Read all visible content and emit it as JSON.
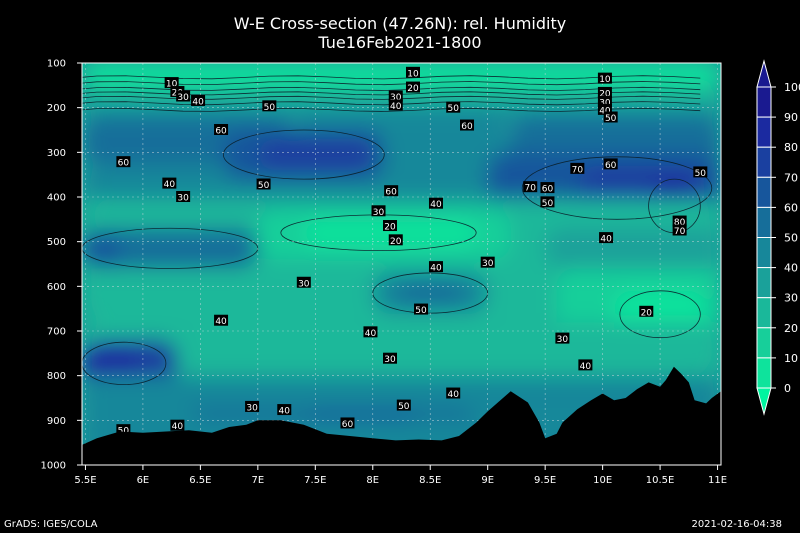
{
  "chart_data": {
    "type": "heatmap",
    "title": "W-E Cross-section (47.26N): rel. Humidity",
    "subtitle": "Tue16Feb2021-1800",
    "x_ticks": [
      "5.5E",
      "6E",
      "6.5E",
      "7E",
      "7.5E",
      "8E",
      "8.5E",
      "9E",
      "9.5E",
      "10E",
      "10.5E",
      "11E"
    ],
    "x_values": [
      5.5,
      6,
      6.5,
      7,
      7.5,
      8,
      8.5,
      9,
      9.5,
      10,
      10.5,
      11
    ],
    "xlim": [
      5.47,
      11.03
    ],
    "y_ticks": [
      "100",
      "200",
      "300",
      "400",
      "500",
      "600",
      "700",
      "800",
      "900",
      "1000"
    ],
    "y_values": [
      100,
      200,
      300,
      400,
      500,
      600,
      700,
      800,
      900,
      1000
    ],
    "ylim": [
      100,
      1000
    ],
    "grid": true,
    "colorbar": {
      "labels": [
        "0",
        "10",
        "20",
        "30",
        "40",
        "50",
        "60",
        "70",
        "80",
        "90",
        "100"
      ],
      "levels": [
        0,
        10,
        20,
        30,
        40,
        50,
        60,
        70,
        80,
        90,
        100
      ],
      "colors": [
        "#00f5a0",
        "#0ee39c",
        "#17cf9a",
        "#1ab89a",
        "#1aa19a",
        "#17879a",
        "#166e9a",
        "#17569c",
        "#1a40a0",
        "#1b2aa0",
        "#1a1a90"
      ]
    },
    "contour_labels": [
      {
        "text": "10",
        "x": 6.25,
        "y": 145
      },
      {
        "text": "20",
        "x": 6.3,
        "y": 165
      },
      {
        "text": "30",
        "x": 6.35,
        "y": 175
      },
      {
        "text": "40",
        "x": 6.48,
        "y": 185
      },
      {
        "text": "50",
        "x": 7.1,
        "y": 197
      },
      {
        "text": "60",
        "x": 6.68,
        "y": 250
      },
      {
        "text": "60",
        "x": 5.83,
        "y": 322
      },
      {
        "text": "40",
        "x": 6.23,
        "y": 370
      },
      {
        "text": "50",
        "x": 7.05,
        "y": 372
      },
      {
        "text": "30",
        "x": 6.35,
        "y": 400
      },
      {
        "text": "10",
        "x": 8.35,
        "y": 122
      },
      {
        "text": "20",
        "x": 8.35,
        "y": 155
      },
      {
        "text": "30",
        "x": 8.2,
        "y": 175
      },
      {
        "text": "40",
        "x": 8.2,
        "y": 195
      },
      {
        "text": "50",
        "x": 8.7,
        "y": 200
      },
      {
        "text": "60",
        "x": 8.82,
        "y": 240
      },
      {
        "text": "60",
        "x": 8.16,
        "y": 387
      },
      {
        "text": "30",
        "x": 8.05,
        "y": 432
      },
      {
        "text": "40",
        "x": 8.55,
        "y": 415
      },
      {
        "text": "20",
        "x": 8.15,
        "y": 465
      },
      {
        "text": "20",
        "x": 8.2,
        "y": 497
      },
      {
        "text": "30",
        "x": 9.0,
        "y": 547
      },
      {
        "text": "40",
        "x": 8.55,
        "y": 557
      },
      {
        "text": "30",
        "x": 7.4,
        "y": 592
      },
      {
        "text": "50",
        "x": 8.42,
        "y": 652
      },
      {
        "text": "40",
        "x": 6.68,
        "y": 677
      },
      {
        "text": "40",
        "x": 7.98,
        "y": 703
      },
      {
        "text": "30",
        "x": 8.15,
        "y": 762
      },
      {
        "text": "70",
        "x": 9.37,
        "y": 378
      },
      {
        "text": "60",
        "x": 9.52,
        "y": 380
      },
      {
        "text": "50",
        "x": 9.52,
        "y": 412
      },
      {
        "text": "70",
        "x": 9.78,
        "y": 337
      },
      {
        "text": "10",
        "x": 10.02,
        "y": 135
      },
      {
        "text": "20",
        "x": 10.02,
        "y": 167
      },
      {
        "text": "30",
        "x": 10.02,
        "y": 187
      },
      {
        "text": "40",
        "x": 10.02,
        "y": 205
      },
      {
        "text": "50",
        "x": 10.07,
        "y": 222
      },
      {
        "text": "60",
        "x": 10.07,
        "y": 327
      },
      {
        "text": "50",
        "x": 10.85,
        "y": 345
      },
      {
        "text": "40",
        "x": 10.03,
        "y": 492
      },
      {
        "text": "80",
        "x": 10.67,
        "y": 455
      },
      {
        "text": "70",
        "x": 10.67,
        "y": 475
      },
      {
        "text": "20",
        "x": 10.38,
        "y": 657
      },
      {
        "text": "30",
        "x": 9.65,
        "y": 717
      },
      {
        "text": "40",
        "x": 9.85,
        "y": 777
      },
      {
        "text": "40",
        "x": 8.7,
        "y": 840
      },
      {
        "text": "50",
        "x": 8.27,
        "y": 867
      },
      {
        "text": "40",
        "x": 7.23,
        "y": 877
      },
      {
        "text": "30",
        "x": 6.95,
        "y": 870
      },
      {
        "text": "60",
        "x": 7.78,
        "y": 907
      },
      {
        "text": "40",
        "x": 6.3,
        "y": 912
      },
      {
        "text": "50",
        "x": 5.83,
        "y": 922
      }
    ],
    "terrain": [
      [
        5.47,
        955
      ],
      [
        5.6,
        940
      ],
      [
        5.8,
        925
      ],
      [
        6.0,
        928
      ],
      [
        6.2,
        925
      ],
      [
        6.4,
        922
      ],
      [
        6.6,
        928
      ],
      [
        6.75,
        915
      ],
      [
        6.9,
        910
      ],
      [
        7.0,
        900
      ],
      [
        7.2,
        900
      ],
      [
        7.4,
        910
      ],
      [
        7.6,
        930
      ],
      [
        7.8,
        935
      ],
      [
        8.0,
        940
      ],
      [
        8.2,
        945
      ],
      [
        8.4,
        943
      ],
      [
        8.6,
        945
      ],
      [
        8.75,
        935
      ],
      [
        8.9,
        905
      ],
      [
        9.0,
        880
      ],
      [
        9.2,
        835
      ],
      [
        9.35,
        860
      ],
      [
        9.45,
        905
      ],
      [
        9.5,
        940
      ],
      [
        9.6,
        930
      ],
      [
        9.65,
        905
      ],
      [
        9.78,
        875
      ],
      [
        9.9,
        855
      ],
      [
        10.0,
        840
      ],
      [
        10.1,
        855
      ],
      [
        10.2,
        850
      ],
      [
        10.3,
        830
      ],
      [
        10.4,
        815
      ],
      [
        10.5,
        825
      ],
      [
        10.55,
        810
      ],
      [
        10.62,
        780
      ],
      [
        10.68,
        795
      ],
      [
        10.75,
        815
      ],
      [
        10.8,
        855
      ],
      [
        10.9,
        862
      ],
      [
        10.95,
        850
      ],
      [
        11.03,
        835
      ]
    ]
  },
  "footer": {
    "left": "GrADS: IGES/COLA",
    "right": "2021-02-16-04:38"
  }
}
